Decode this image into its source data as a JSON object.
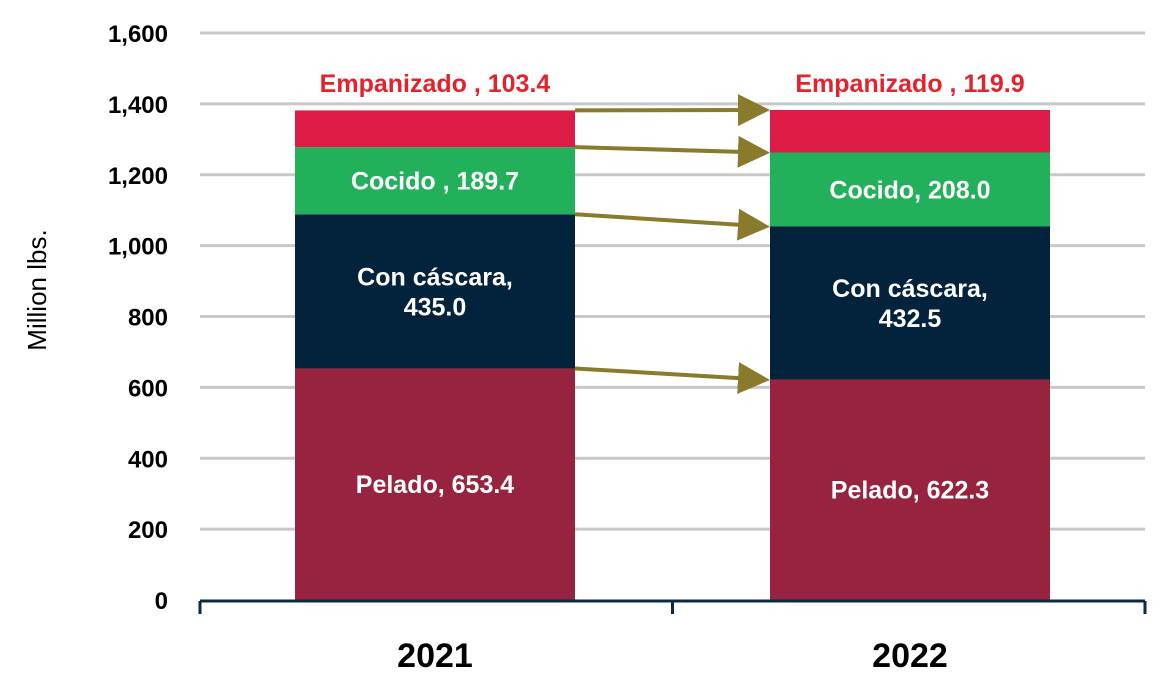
{
  "chart_data": {
    "type": "bar",
    "stacked": true,
    "title": "",
    "xlabel": "",
    "ylabel": "Million lbs.",
    "ylim": [
      0,
      1600
    ],
    "yticks": [
      0,
      200,
      400,
      600,
      800,
      1000,
      1200,
      1400,
      1600
    ],
    "ytick_labels": [
      "0",
      "200",
      "400",
      "600",
      "800",
      "1,000",
      "1,200",
      "1,400",
      "1,600"
    ],
    "categories": [
      "2021",
      "2022"
    ],
    "grid": true,
    "series": [
      {
        "name": "Pelado",
        "color": "#98233f",
        "label_color": "#ffffff",
        "values": [
          653.4,
          622.3
        ],
        "labels": [
          [
            "Pelado, 653.4"
          ],
          [
            "Pelado, 622.3"
          ]
        ]
      },
      {
        "name": "Con cáscara",
        "color": "#03223c",
        "label_color": "#ffffff",
        "values": [
          435.0,
          432.5
        ],
        "labels": [
          [
            "Con cáscara,",
            "435.0"
          ],
          [
            "Con cáscara,",
            "432.5"
          ]
        ]
      },
      {
        "name": "Cocido",
        "color": "#23b05a",
        "label_color": "#ffffff",
        "values": [
          189.7,
          208.0
        ],
        "labels": [
          [
            "Cocido , 189.7"
          ],
          [
            "Cocido, 208.0"
          ]
        ]
      },
      {
        "name": "Empanizado",
        "color": "#dc1c45",
        "label_color": "#e3232c",
        "values": [
          103.4,
          119.9
        ],
        "labels": [
          [
            "Empanizado , 103.4"
          ],
          [
            "Empanizado , 119.9"
          ]
        ],
        "label_position": "above"
      }
    ],
    "annotations": {
      "type": "arrows",
      "color": "#8a7a2c",
      "description": "arrows connecting segment boundaries from 2021 to 2022"
    }
  }
}
